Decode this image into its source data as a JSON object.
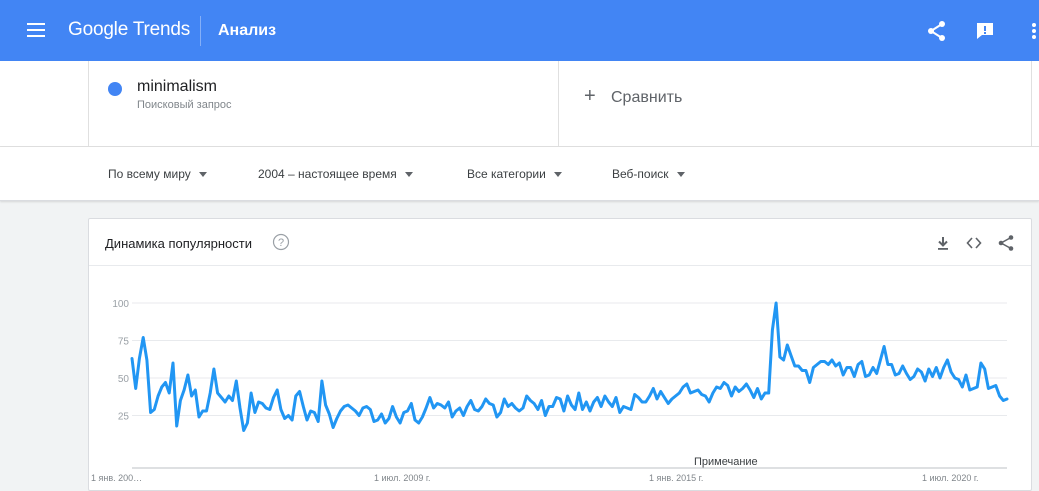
{
  "topbar": {
    "brand_google": "Google",
    "brand_trends": "Trends",
    "page_title": "Анализ",
    "icons": [
      "menu-icon",
      "share-icon",
      "feedback-icon",
      "more-vert-icon"
    ]
  },
  "search_term": {
    "term": "minimalism",
    "type": "Поисковый запрос",
    "color": "#4285f4"
  },
  "compare": {
    "plus": "+",
    "label": "Сравнить"
  },
  "filters": {
    "region": "По всему миру",
    "period": "2004 – настоящее время",
    "category": "Все категории",
    "search_type": "Веб-поиск"
  },
  "panel": {
    "title": "Динамика популярности",
    "note": "Примечание",
    "icons": [
      "help-icon",
      "download-icon",
      "embed-icon",
      "share-icon"
    ]
  },
  "chart_data": {
    "type": "line",
    "y_ticks": [
      "100",
      "75",
      "50",
      "25"
    ],
    "x_tick_labels": [
      "1 янв. 200…",
      "1 июл. 2009 г.",
      "1 янв. 2015 г.",
      "1 июл. 2020 г."
    ],
    "ylim": [
      0,
      100
    ],
    "xlim": [
      "2004-01",
      "2021-12"
    ],
    "grid": true,
    "line_color": "#2196f3",
    "series": [
      {
        "values": [
          63,
          43,
          63,
          77,
          62,
          27,
          29,
          38,
          44,
          47,
          40,
          60,
          18,
          35,
          42,
          52,
          38,
          42,
          24,
          28,
          28,
          40,
          56,
          40,
          37,
          34,
          38,
          35,
          48,
          30,
          15,
          20,
          40,
          27,
          34,
          33,
          30,
          29,
          37,
          42,
          29,
          23,
          25,
          22,
          38,
          41,
          31,
          22,
          28,
          27,
          21,
          48,
          32,
          26,
          17,
          23,
          28,
          31,
          32,
          30,
          28,
          25,
          30,
          31,
          29,
          21,
          22,
          26,
          20,
          23,
          31,
          24,
          20,
          27,
          28,
          33,
          22,
          20,
          24,
          30,
          37,
          30,
          33,
          32,
          30,
          34,
          24,
          28,
          30,
          25,
          31,
          35,
          29,
          28,
          31,
          36,
          33,
          32,
          24,
          27,
          36,
          31,
          33,
          30,
          28,
          30,
          38,
          35,
          33,
          29,
          35,
          25,
          31,
          31,
          37,
          36,
          28,
          38,
          32,
          29,
          40,
          29,
          34,
          28,
          34,
          37,
          31,
          38,
          34,
          31,
          37,
          27,
          31,
          30,
          29,
          39,
          37,
          34,
          34,
          38,
          43,
          36,
          41,
          37,
          33,
          36,
          38,
          40,
          44,
          46,
          40,
          41,
          42,
          39,
          38,
          34,
          40,
          44,
          43,
          47,
          45,
          38,
          44,
          41,
          43,
          46,
          42,
          37,
          43,
          36,
          40,
          40,
          82,
          100,
          64,
          62,
          72,
          65,
          58,
          58,
          55,
          55,
          47,
          57,
          59,
          61,
          61,
          59,
          62,
          58,
          60,
          52,
          57,
          57,
          51,
          59,
          61,
          51,
          52,
          57,
          53,
          62,
          71,
          59,
          59,
          52,
          53,
          58,
          53,
          49,
          51,
          56,
          54,
          48,
          56,
          51,
          57,
          50,
          57,
          62,
          54,
          50,
          49,
          44,
          52,
          42,
          43,
          44,
          60,
          56,
          43,
          44,
          45,
          38,
          35,
          36
        ]
      }
    ]
  }
}
